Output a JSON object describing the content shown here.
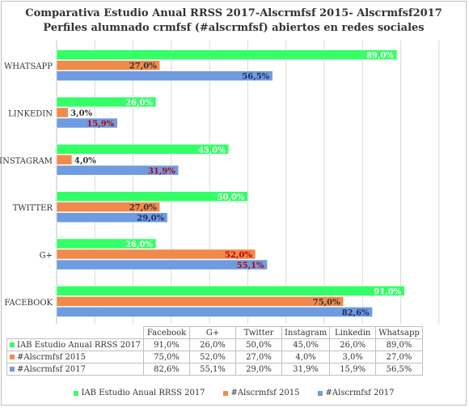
{
  "chart_data": {
    "type": "bar",
    "orientation": "horizontal",
    "title": "Comparativa Estudio Anual RRSS 2017-Alscrmfsf 2015- Alscrmfsf2017",
    "subtitle": "Perfiles alumnado crmfsf (#alscrmfsf) abiertos en redes sociales",
    "categories": [
      "Facebook",
      "G+",
      "Twitter",
      "Instagram",
      "Linkedin",
      "Whatsapp"
    ],
    "axis_labels": [
      "FACEBOOK",
      "G+",
      "TWITTER",
      "INSTAGRAM",
      "LINKEDIN",
      "WHATSAPP"
    ],
    "series": [
      {
        "name": "IAB Estudio Anual RRSS 2017",
        "color": "#33ff66",
        "values": [
          91.0,
          26.0,
          50.0,
          45.0,
          26.0,
          89.0
        ],
        "labels": [
          "91,0%",
          "26,0%",
          "50,0%",
          "45,0%",
          "26,0%",
          "89,0%"
        ],
        "label_color": "#ffffff"
      },
      {
        "name": "#Alscrmfsf 2015",
        "color": "#f08a4b",
        "values": [
          75.0,
          52.0,
          27.0,
          4.0,
          3.0,
          27.0
        ],
        "labels": [
          "75,0%",
          "52,0%",
          "27,0%",
          "4,0%",
          "3,0%",
          "27,0%"
        ],
        "label_color": "#333333"
      },
      {
        "name": "#Alscrmfsf 2017",
        "color": "#6f9be0",
        "values": [
          82.6,
          55.1,
          29.0,
          31.9,
          15.9,
          56.5
        ],
        "labels": [
          "82,6%",
          "55,1%",
          "29,0%",
          "31,9%",
          "15,9%",
          "56,5%"
        ],
        "label_color": "#1f2d5a"
      }
    ],
    "label_highlight_color": "#c00000",
    "xlim": [
      0,
      100
    ],
    "grid": true,
    "legend": "bottom"
  },
  "table": {
    "rows": [
      {
        "key": "IAB Estudio Anual RRSS 2017",
        "cells": [
          "91,0%",
          "26,0%",
          "50,0%",
          "45,0%",
          "26,0%",
          "89,0%"
        ]
      },
      {
        "key": "#Alscrmfsf 2015",
        "cells": [
          "75,0%",
          "52,0%",
          "27,0%",
          "4,0%",
          "3,0%",
          "27,0%"
        ]
      },
      {
        "key": "#Alscrmfsf 2017",
        "cells": [
          "82,6%",
          "55,1%",
          "29,0%",
          "31,9%",
          "15,9%",
          "56,5%"
        ]
      }
    ]
  }
}
